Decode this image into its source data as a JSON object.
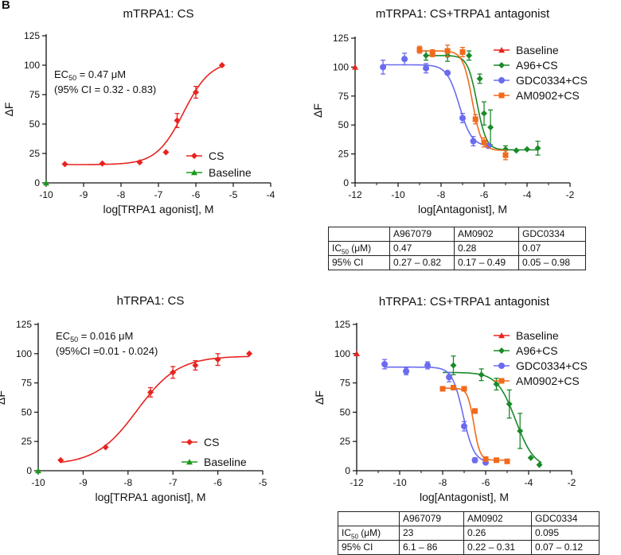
{
  "panel_label": "B",
  "chart_data": [
    {
      "id": "mTRPA1-agonist",
      "type": "scatter",
      "title": "mTRPA1: CS",
      "xlabel": "log[TRPA1 agonist], M",
      "ylabel": "ΔF",
      "xlim": [
        -10,
        -4
      ],
      "ylim": [
        0,
        125
      ],
      "xticks": [
        -10,
        -9,
        -8,
        -7,
        -6,
        -5,
        -4
      ],
      "yticks": [
        0,
        25,
        50,
        75,
        100,
        125
      ],
      "xtick_labels": [
        "-10",
        "-9",
        "-8",
        "-7",
        "-6",
        "-5",
        "-4"
      ],
      "ytick_labels": [
        "0",
        "25",
        "50",
        "75",
        "100",
        "125"
      ],
      "annotation": [
        "EC50 = 0.47 μM",
        "(95% CI = 0.32 - 0.83)"
      ],
      "series": [
        {
          "name": "CS",
          "color": "#e8231f",
          "marker": "diamond",
          "x": [
            -9.5,
            -8.5,
            -7.5,
            -6.8,
            -6.5,
            -6.0,
            -5.3
          ],
          "y": [
            16,
            16.5,
            17.5,
            26,
            53,
            77,
            100
          ],
          "err": [
            0,
            0,
            0,
            0,
            6,
            5,
            0
          ],
          "fit": {
            "bottom": 15.5,
            "top": 104,
            "log_ec50": -6.33,
            "hill": 1.2,
            "range": [
              -9.5,
              -5.3
            ]
          }
        },
        {
          "name": "Baseline",
          "color": "#1a9a1a",
          "marker": "triangle",
          "x": [
            -10
          ],
          "y": [
            0
          ],
          "err": [
            0
          ]
        }
      ],
      "legend": {
        "position": "bottom-right",
        "entries": [
          "CS",
          "Baseline"
        ]
      }
    },
    {
      "id": "mTRPA1-antagonist",
      "type": "scatter",
      "title": "mTRPA1: CS+TRPA1 antagonist",
      "xlabel": "log[Antagonist], M",
      "ylabel": "ΔF",
      "xlim": [
        -12,
        -2
      ],
      "ylim": [
        0,
        125
      ],
      "xticks": [
        -12,
        -10,
        -8,
        -6,
        -4,
        -2
      ],
      "yticks": [
        0,
        25,
        50,
        75,
        100,
        125
      ],
      "xtick_labels": [
        "-12",
        "-10",
        "-8",
        "-6",
        "-4",
        "-2"
      ],
      "ytick_labels": [
        "0",
        "25",
        "50",
        "75",
        "100",
        "125"
      ],
      "series": [
        {
          "name": "Baseline",
          "color": "#e8231f",
          "marker": "triangle",
          "x": [
            -12
          ],
          "y": [
            100
          ],
          "err": [
            0
          ]
        },
        {
          "name": "A96+CS",
          "color": "#1a8a2a",
          "marker": "diamond",
          "x": [
            -8.7,
            -7.7,
            -6.7,
            -6.2,
            -6.0,
            -5.7,
            -5.0,
            -4.5,
            -4.0,
            -3.5
          ],
          "y": [
            110,
            110,
            110,
            90,
            60,
            48,
            29,
            28,
            29,
            30
          ],
          "err": [
            4,
            5,
            4,
            4,
            10,
            15,
            3,
            0,
            0,
            6
          ],
          "fit": {
            "bottom": 28.5,
            "top": 110,
            "log_ec50": -6.33,
            "hill": 2.0,
            "range": [
              -8.7,
              -3.5
            ]
          }
        },
        {
          "name": "GDC0334+CS",
          "color": "#6b6bf0",
          "marker": "circle",
          "x": [
            -10.7,
            -9.7,
            -8.7,
            -7.7,
            -7.0,
            -6.5,
            -5.8
          ],
          "y": [
            100,
            107,
            99,
            95,
            56,
            36,
            32
          ],
          "err": [
            6,
            5,
            4,
            0,
            4,
            4,
            0
          ],
          "fit": {
            "bottom": 31.5,
            "top": 102,
            "log_ec50": -7.15,
            "hill": 1.5,
            "range": [
              -10.7,
              -5.8
            ]
          }
        },
        {
          "name": "AM0902+CS",
          "color": "#f26a1b",
          "marker": "square",
          "x": [
            -9.0,
            -8.4,
            -7.7,
            -7.0,
            -6.4,
            -6.0,
            -5.0
          ],
          "y": [
            115,
            112,
            114,
            113,
            55,
            35,
            24
          ],
          "err": [
            3,
            3,
            5,
            4,
            4,
            4,
            4
          ],
          "fit": {
            "bottom": 28,
            "top": 114,
            "log_ec50": -6.55,
            "hill": 2.0,
            "range": [
              -9.0,
              -5.0
            ]
          }
        }
      ],
      "legend": {
        "position": "top-right",
        "entries": [
          "Baseline",
          "A96+CS",
          "GDC0334+CS",
          "AM0902+CS"
        ]
      }
    },
    {
      "id": "hTRPA1-agonist",
      "type": "scatter",
      "title": "hTRPA1: CS",
      "xlabel": "log[TRPA1 agonist], M",
      "ylabel": "ΔF",
      "xlim": [
        -10,
        -5
      ],
      "ylim": [
        0,
        125
      ],
      "xticks": [
        -10,
        -9,
        -8,
        -7,
        -6,
        -5
      ],
      "yticks": [
        0,
        25,
        50,
        75,
        100,
        125
      ],
      "xtick_labels": [
        "-10",
        "-9",
        "-8",
        "-7",
        "-6",
        "-5"
      ],
      "ytick_labels": [
        "0",
        "25",
        "50",
        "75",
        "100",
        "125"
      ],
      "annotation": [
        "EC50 = 0.016 μM",
        "(95%CI =0.01 - 0.024)"
      ],
      "series": [
        {
          "name": "CS",
          "color": "#e8231f",
          "marker": "diamond",
          "x": [
            -9.5,
            -8.5,
            -7.5,
            -7.0,
            -6.5,
            -6.0,
            -5.3
          ],
          "y": [
            9,
            20,
            67,
            84,
            90,
            95,
            100
          ],
          "err": [
            0,
            0,
            4,
            5,
            4,
            5,
            0
          ],
          "fit": {
            "bottom": 5,
            "top": 98,
            "log_ec50": -7.8,
            "hill": 0.95,
            "range": [
              -9.5,
              -5.3
            ]
          }
        },
        {
          "name": "Baseline",
          "color": "#1a9a1a",
          "marker": "triangle",
          "x": [
            -10
          ],
          "y": [
            0
          ],
          "err": [
            0
          ]
        }
      ],
      "legend": {
        "position": "bottom-right",
        "entries": [
          "CS",
          "Baseline"
        ]
      }
    },
    {
      "id": "hTRPA1-antagonist",
      "type": "scatter",
      "title": "hTRPA1: CS+TRPA1 antagonist",
      "xlabel": "log[Antagonist], M",
      "ylabel": "ΔF",
      "xlim": [
        -12,
        -2
      ],
      "ylim": [
        0,
        125
      ],
      "xticks": [
        -12,
        -10,
        -8,
        -6,
        -4,
        -2
      ],
      "yticks": [
        0,
        25,
        50,
        75,
        100,
        125
      ],
      "xtick_labels": [
        "-12",
        "-10",
        "-8",
        "-6",
        "-4",
        "-2"
      ],
      "ytick_labels": [
        "0",
        "25",
        "50",
        "75",
        "100",
        "125"
      ],
      "series": [
        {
          "name": "Baseline",
          "color": "#e8231f",
          "marker": "triangle",
          "x": [
            -12
          ],
          "y": [
            100
          ],
          "err": [
            0
          ]
        },
        {
          "name": "A96+CS",
          "color": "#1a8a2a",
          "marker": "diamond",
          "x": [
            -7.5,
            -6.2,
            -5.5,
            -4.9,
            -4.4,
            -3.9,
            -3.5
          ],
          "y": [
            90,
            82,
            74,
            57,
            34,
            11,
            5
          ],
          "err": [
            8,
            5,
            5,
            12,
            15,
            0,
            0
          ],
          "fit": {
            "bottom": 2,
            "top": 84,
            "log_ec50": -4.6,
            "hill": 1.0,
            "range": [
              -8.0,
              -3.4
            ]
          }
        },
        {
          "name": "GDC0334+CS",
          "color": "#6b6bf0",
          "marker": "circle",
          "x": [
            -10.7,
            -9.7,
            -8.7,
            -7.7,
            -7.0,
            -6.5,
            -6.0
          ],
          "y": [
            91,
            85,
            90,
            80,
            38,
            9,
            7
          ],
          "err": [
            4,
            3,
            3,
            4,
            4,
            2,
            0
          ],
          "fit": {
            "bottom": 7,
            "top": 88.5,
            "log_ec50": -7.05,
            "hill": 1.7,
            "range": [
              -10.7,
              -6.0
            ]
          }
        },
        {
          "name": "AM0902+CS",
          "color": "#f26a1b",
          "marker": "square",
          "x": [
            -8.0,
            -7.5,
            -7.0,
            -6.5,
            -6.0,
            -5.5,
            -5.0
          ],
          "y": [
            70,
            71,
            70,
            51,
            10,
            9,
            8
          ],
          "err": [
            0,
            0,
            0,
            2,
            0,
            0,
            0
          ],
          "fit": {
            "bottom": 9,
            "top": 70.5,
            "log_ec50": -6.55,
            "hill": 3.0,
            "range": [
              -8.0,
              -5.0
            ]
          }
        }
      ],
      "legend": {
        "position": "top-right",
        "entries": [
          "Baseline",
          "A96+CS",
          "GDC0334+CS",
          "AM0902+CS"
        ]
      }
    }
  ],
  "tables": [
    {
      "id": "m-ic50",
      "header": [
        "",
        "A967079",
        "AM0902",
        "GDC0334"
      ],
      "rows": [
        [
          "IC50 (μM)",
          "0.47",
          "0.28",
          "0.07"
        ],
        [
          "95% CI",
          "0.27 – 0.82",
          "0.17 – 0.49",
          "0.05 – 0.98"
        ]
      ]
    },
    {
      "id": "h-ic50",
      "header": [
        "",
        "A967079",
        "AM0902",
        "GDC0334"
      ],
      "rows": [
        [
          "IC50 (μM)",
          "23",
          "0.26",
          "0.095"
        ],
        [
          "95% CI",
          "6.1 – 86",
          "0.22 – 0.31",
          "0.07 – 0.12"
        ]
      ]
    }
  ]
}
